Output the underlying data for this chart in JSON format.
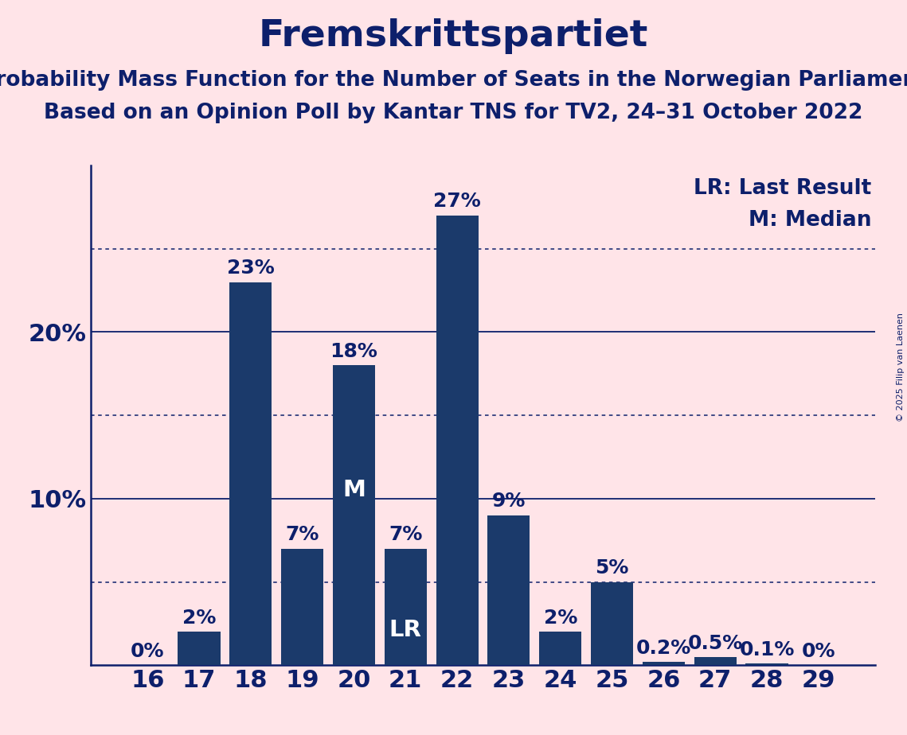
{
  "title": "Fremskrittspartiet",
  "subtitle1": "Probability Mass Function for the Number of Seats in the Norwegian Parliament",
  "subtitle2": "Based on an Opinion Poll by Kantar TNS for TV2, 24–31 October 2022",
  "copyright": "© 2025 Filip van Laenen",
  "seats": [
    16,
    17,
    18,
    19,
    20,
    21,
    22,
    23,
    24,
    25,
    26,
    27,
    28,
    29
  ],
  "probabilities": [
    0.0,
    2.0,
    23.0,
    7.0,
    18.0,
    7.0,
    27.0,
    9.0,
    2.0,
    5.0,
    0.2,
    0.5,
    0.1,
    0.0
  ],
  "bar_color": "#1B3A6B",
  "background_color": "#FFE4E8",
  "text_color": "#0D1F6B",
  "label_color_inside": "#FFFFFF",
  "label_color_outside": "#0D1F6B",
  "LR_seat": 21,
  "M_seat": 20,
  "dotted_lines": [
    5,
    15,
    25
  ],
  "solid_lines": [
    10,
    20
  ],
  "ylim": [
    0,
    30
  ],
  "legend_LR": "LR: Last Result",
  "legend_M": "M: Median",
  "title_fontsize": 34,
  "subtitle_fontsize": 19,
  "bar_label_fontsize": 18,
  "tick_fontsize": 22,
  "legend_fontsize": 19,
  "bar_width": 0.82
}
